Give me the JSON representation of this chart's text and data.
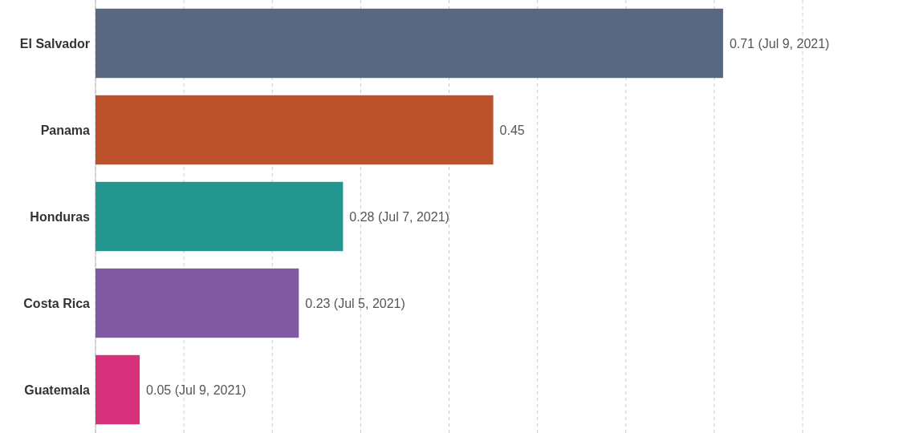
{
  "chart_data": {
    "type": "bar",
    "orientation": "horizontal",
    "categories": [
      "El Salvador",
      "Panama",
      "Honduras",
      "Costa Rica",
      "Guatemala"
    ],
    "values": [
      0.71,
      0.45,
      0.28,
      0.23,
      0.05
    ],
    "colors": [
      "#5a6780",
      "#bc532c",
      "#22968f",
      "#805aa3",
      "#d6317a"
    ],
    "value_labels": [
      "0.71 (Jul 9, 2021)",
      "0.45",
      "0.28 (Jul 7, 2021)",
      "0.23 (Jul 5, 2021)",
      "0.05 (Jul 9, 2021)"
    ],
    "xlim": [
      0,
      0.8
    ],
    "xticks": [
      {
        "value": 0,
        "label": null
      },
      {
        "value": 0.1,
        "label": null
      },
      {
        "value": 0.2,
        "label": null
      },
      {
        "value": 0.3,
        "label": null
      },
      {
        "value": 0.4,
        "label": null
      },
      {
        "value": 0.5,
        "label": null
      },
      {
        "value": 0.6,
        "label": null
      },
      {
        "value": 0.7,
        "label": null
      },
      {
        "value": 0.8,
        "label": null
      }
    ],
    "grid": "x",
    "tick_labels": "y"
  }
}
